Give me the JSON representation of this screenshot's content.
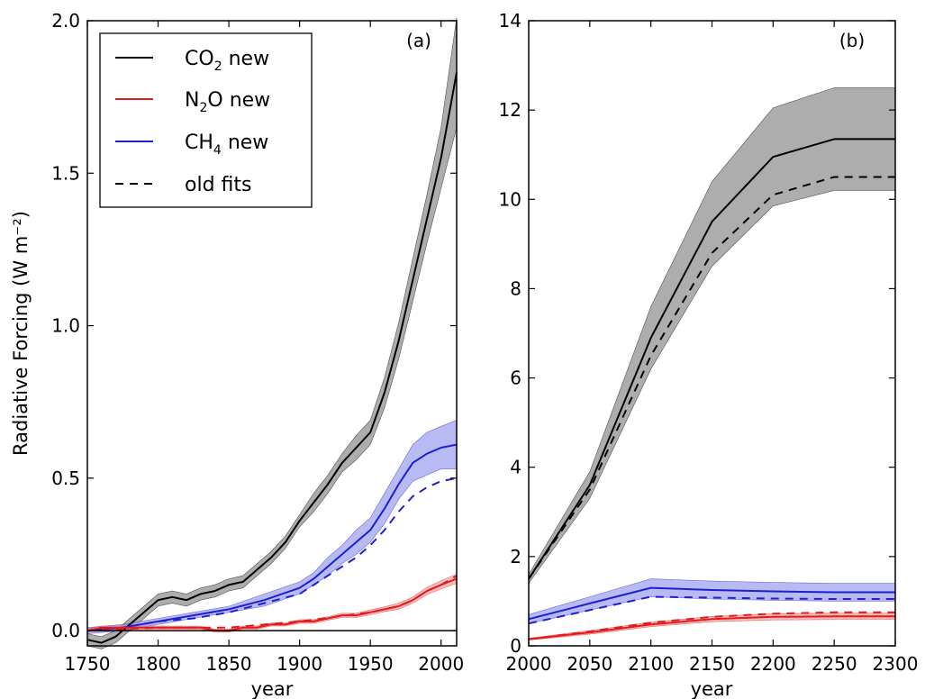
{
  "colors": {
    "co2": "#000000",
    "co2_band": "#999999",
    "n2o": "#e41a1c",
    "n2o_band": "#f4a3a3",
    "ch4": "#1f1fd0",
    "ch4_band": "#9a9cf0",
    "old": "#000000"
  },
  "ylabel": "Radiative Forcing (W m⁻²)",
  "legend": {
    "entries": [
      {
        "key": "co2",
        "label_main": "CO",
        "label_sub": "2",
        "label_tail": " new",
        "style": "solid"
      },
      {
        "key": "n2o",
        "label_main": "N",
        "label_sub": "2",
        "label_tail": "O new",
        "style": "solid"
      },
      {
        "key": "ch4",
        "label_main": "CH",
        "label_sub": "4",
        "label_tail": " new",
        "style": "solid"
      },
      {
        "key": "old",
        "label_main": "old fits",
        "label_sub": "",
        "label_tail": "",
        "style": "dashed"
      }
    ],
    "placement": "top-left of panel (a)"
  },
  "chart_data": [
    {
      "type": "line",
      "panel": "(a)",
      "xlabel": "year",
      "xlim": [
        1750,
        2011
      ],
      "ylim": [
        -0.05,
        2.0
      ],
      "xticks": [
        1750,
        1800,
        1850,
        1900,
        1950,
        2000
      ],
      "xtick_labels": [
        "1750",
        "1800",
        "1850",
        "1900",
        "1950",
        "2000"
      ],
      "yticks": [
        0.0,
        0.5,
        1.0,
        1.5,
        2.0
      ],
      "ytick_labels": [
        "0.0",
        "0.5",
        "1.0",
        "1.5",
        "2.0"
      ],
      "zero_line": true,
      "series": [
        {
          "key": "co2",
          "style": "solid",
          "x": [
            1750,
            1760,
            1770,
            1780,
            1790,
            1800,
            1810,
            1820,
            1830,
            1840,
            1850,
            1860,
            1870,
            1880,
            1890,
            1900,
            1910,
            1920,
            1930,
            1940,
            1950,
            1960,
            1970,
            1980,
            1990,
            2000,
            2011
          ],
          "y": [
            -0.03,
            -0.04,
            -0.02,
            0.02,
            0.06,
            0.1,
            0.11,
            0.1,
            0.12,
            0.13,
            0.15,
            0.16,
            0.2,
            0.24,
            0.29,
            0.36,
            0.42,
            0.48,
            0.55,
            0.6,
            0.65,
            0.78,
            0.95,
            1.15,
            1.35,
            1.55,
            1.83
          ],
          "band": [
            0.02,
            0.02,
            0.02,
            0.02,
            0.02,
            0.02,
            0.02,
            0.02,
            0.02,
            0.02,
            0.02,
            0.02,
            0.02,
            0.02,
            0.02,
            0.02,
            0.03,
            0.03,
            0.03,
            0.04,
            0.04,
            0.05,
            0.06,
            0.07,
            0.08,
            0.1,
            0.18
          ]
        },
        {
          "key": "ch4",
          "style": "solid",
          "x": [
            1750,
            1775,
            1800,
            1825,
            1850,
            1875,
            1900,
            1910,
            1920,
            1930,
            1940,
            1950,
            1960,
            1970,
            1980,
            1990,
            2000,
            2011
          ],
          "y": [
            0.0,
            0.01,
            0.03,
            0.05,
            0.07,
            0.1,
            0.14,
            0.17,
            0.21,
            0.25,
            0.29,
            0.33,
            0.4,
            0.48,
            0.55,
            0.58,
            0.6,
            0.61
          ],
          "band": [
            0.01,
            0.01,
            0.01,
            0.01,
            0.01,
            0.02,
            0.02,
            0.02,
            0.03,
            0.03,
            0.04,
            0.04,
            0.05,
            0.05,
            0.06,
            0.07,
            0.07,
            0.08
          ]
        },
        {
          "key": "ch4",
          "style": "dashed",
          "x": [
            1750,
            1775,
            1800,
            1825,
            1850,
            1875,
            1900,
            1910,
            1920,
            1930,
            1940,
            1950,
            1960,
            1970,
            1980,
            1990,
            2000,
            2011
          ],
          "y": [
            0.0,
            0.01,
            0.03,
            0.04,
            0.06,
            0.09,
            0.12,
            0.15,
            0.18,
            0.21,
            0.24,
            0.28,
            0.33,
            0.39,
            0.44,
            0.47,
            0.49,
            0.5
          ]
        },
        {
          "key": "n2o",
          "style": "solid",
          "x": [
            1750,
            1760,
            1770,
            1780,
            1790,
            1800,
            1810,
            1820,
            1830,
            1840,
            1850,
            1860,
            1870,
            1880,
            1890,
            1900,
            1910,
            1920,
            1930,
            1940,
            1950,
            1960,
            1970,
            1980,
            1990,
            2000,
            2011
          ],
          "y": [
            0.0,
            0.01,
            0.01,
            0.01,
            0.01,
            0.01,
            0.01,
            0.01,
            0.01,
            0.0,
            0.0,
            0.01,
            0.01,
            0.02,
            0.02,
            0.03,
            0.03,
            0.04,
            0.05,
            0.05,
            0.06,
            0.07,
            0.08,
            0.1,
            0.13,
            0.15,
            0.17
          ],
          "band": [
            0.005,
            0.005,
            0.005,
            0.005,
            0.005,
            0.005,
            0.005,
            0.005,
            0.005,
            0.005,
            0.005,
            0.005,
            0.005,
            0.005,
            0.005,
            0.006,
            0.006,
            0.006,
            0.007,
            0.007,
            0.008,
            0.008,
            0.01,
            0.01,
            0.012,
            0.014,
            0.015
          ]
        },
        {
          "key": "n2o",
          "style": "dashed",
          "x": [
            1750,
            1800,
            1850,
            1900,
            1950,
            1970,
            1980,
            1990,
            2000,
            2011
          ],
          "y": [
            0.0,
            0.01,
            0.01,
            0.03,
            0.06,
            0.08,
            0.1,
            0.13,
            0.15,
            0.18
          ]
        }
      ]
    },
    {
      "type": "line",
      "panel": "(b)",
      "xlabel": "year",
      "xlim": [
        2000,
        2300
      ],
      "ylim": [
        0,
        14
      ],
      "xticks": [
        2000,
        2050,
        2100,
        2150,
        2200,
        2250,
        2300
      ],
      "xtick_labels": [
        "2000",
        "2050",
        "2100",
        "2150",
        "2200",
        "2250",
        "2300"
      ],
      "yticks": [
        0,
        2,
        4,
        6,
        8,
        10,
        12,
        14
      ],
      "ytick_labels": [
        "0",
        "2",
        "4",
        "6",
        "8",
        "10",
        "12",
        "14"
      ],
      "series": [
        {
          "key": "co2",
          "style": "solid",
          "x": [
            2000,
            2050,
            2100,
            2150,
            2200,
            2250,
            2300
          ],
          "y": [
            1.5,
            3.6,
            6.9,
            9.5,
            10.95,
            11.35,
            11.35
          ],
          "lo": [
            1.4,
            3.3,
            6.2,
            8.5,
            9.85,
            10.2,
            10.2
          ],
          "hi": [
            1.6,
            3.9,
            7.6,
            10.4,
            12.05,
            12.5,
            12.5
          ]
        },
        {
          "key": "co2",
          "style": "dashed",
          "x": [
            2000,
            2050,
            2100,
            2150,
            2200,
            2250,
            2300
          ],
          "y": [
            1.5,
            3.5,
            6.5,
            8.8,
            10.1,
            10.5,
            10.5
          ]
        },
        {
          "key": "ch4",
          "style": "solid",
          "x": [
            2000,
            2050,
            2100,
            2150,
            2200,
            2250,
            2300
          ],
          "y": [
            0.6,
            0.95,
            1.3,
            1.25,
            1.22,
            1.2,
            1.2
          ],
          "lo": [
            0.5,
            0.8,
            1.1,
            1.05,
            1.02,
            1.0,
            1.0
          ],
          "hi": [
            0.7,
            1.1,
            1.5,
            1.45,
            1.42,
            1.4,
            1.4
          ]
        },
        {
          "key": "ch4",
          "style": "dashed",
          "x": [
            2000,
            2050,
            2100,
            2150,
            2200,
            2250,
            2300
          ],
          "y": [
            0.5,
            0.8,
            1.1,
            1.08,
            1.06,
            1.05,
            1.05
          ]
        },
        {
          "key": "n2o",
          "style": "solid",
          "x": [
            2000,
            2050,
            2100,
            2150,
            2200,
            2250,
            2300
          ],
          "y": [
            0.15,
            0.3,
            0.48,
            0.6,
            0.65,
            0.66,
            0.66
          ],
          "lo": [
            0.13,
            0.26,
            0.43,
            0.54,
            0.58,
            0.59,
            0.59
          ],
          "hi": [
            0.17,
            0.34,
            0.53,
            0.66,
            0.72,
            0.73,
            0.73
          ]
        },
        {
          "key": "n2o",
          "style": "dashed",
          "x": [
            2000,
            2050,
            2100,
            2150,
            2200,
            2250,
            2300
          ],
          "y": [
            0.15,
            0.32,
            0.52,
            0.65,
            0.72,
            0.75,
            0.75
          ]
        }
      ]
    }
  ]
}
